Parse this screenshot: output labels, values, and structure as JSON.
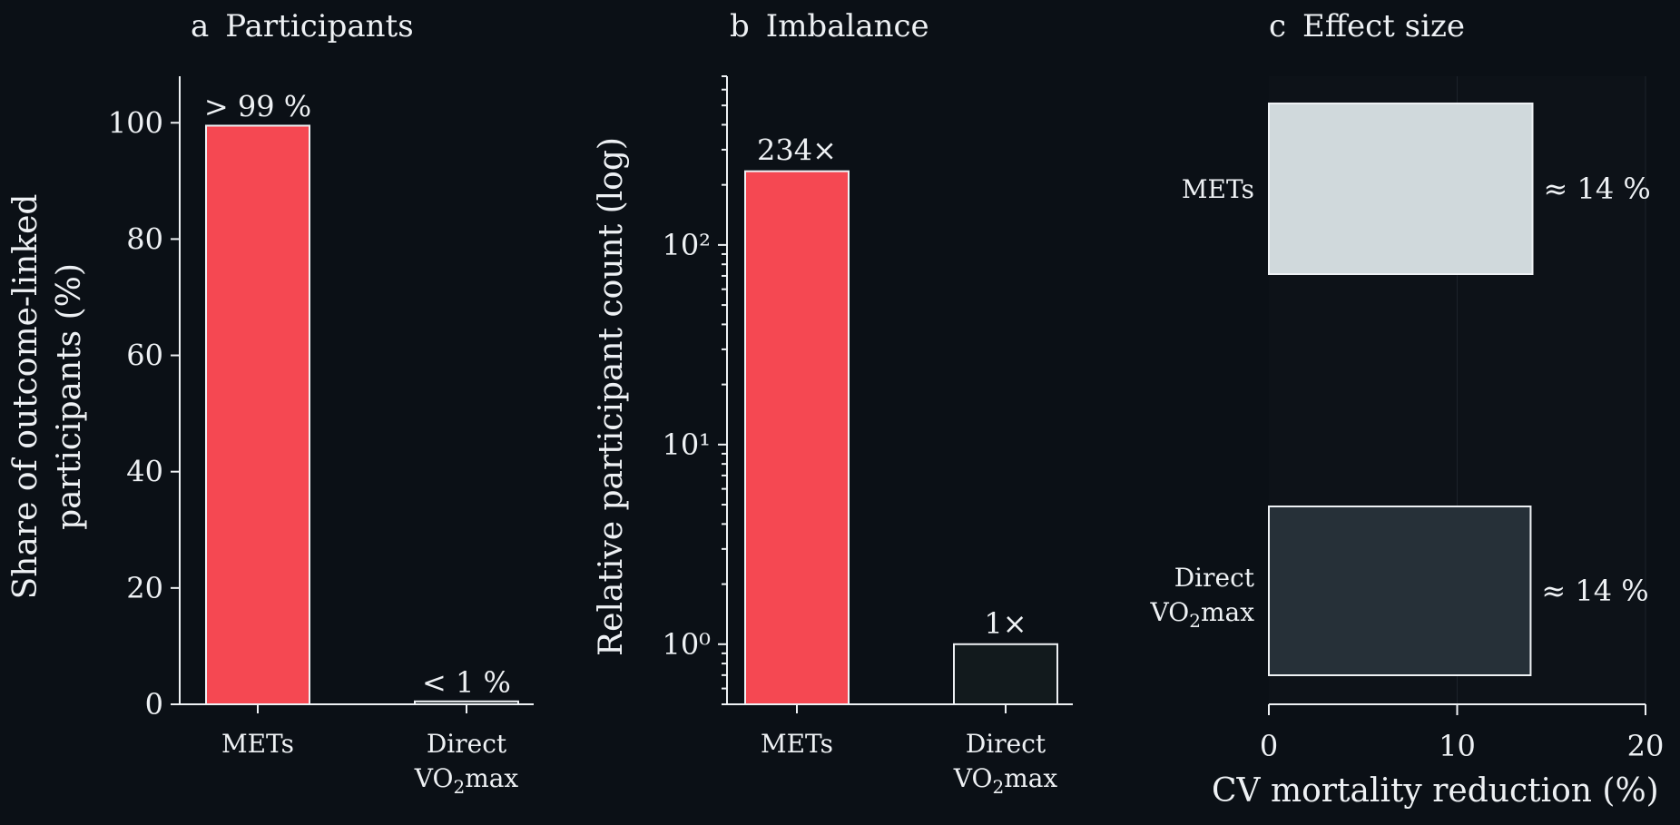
{
  "panels": {
    "a": {
      "letter": "a",
      "title": "Participants",
      "ylabel_line1": "Share of outcome-linked",
      "ylabel_line2": "participants (%)"
    },
    "b": {
      "letter": "b",
      "title": "Imbalance",
      "ylabel": "Relative participant count (log)"
    },
    "c": {
      "letter": "c",
      "title": "Effect size",
      "xlabel": "CV mortality reduction (%)"
    }
  },
  "colors": {
    "background": "#0b1016",
    "mets_red": "#f54852",
    "vo2_dark": "#121a1d",
    "mets_light": "#d0d9dc",
    "vo2_slate": "#263038",
    "text": "#eef1f4"
  },
  "chart_data": [
    {
      "type": "bar",
      "panel": "a",
      "categories": [
        "METs",
        "Direct VO2max"
      ],
      "values": [
        99.5,
        0.5
      ],
      "data_labels": [
        "> 99 %",
        "< 1 %"
      ],
      "title": "a  Participants",
      "ylabel": "Share of outcome-linked participants (%)",
      "xlabel": "",
      "ylim": [
        0,
        108
      ],
      "yticks": [
        0,
        20,
        40,
        60,
        80,
        100
      ],
      "grid": false
    },
    {
      "type": "bar",
      "panel": "b",
      "categories": [
        "METs",
        "Direct VO2max"
      ],
      "values": [
        234,
        1
      ],
      "data_labels": [
        "234×",
        "1×"
      ],
      "title": "b  Imbalance",
      "ylabel": "Relative participant count (log)",
      "xlabel": "",
      "yscale": "log",
      "ylim": [
        0.5,
        700
      ],
      "yticks": [
        1,
        10,
        100
      ],
      "grid": false
    },
    {
      "type": "bar",
      "orientation": "horizontal",
      "panel": "c",
      "categories": [
        "METs",
        "Direct VO2max"
      ],
      "values": [
        14,
        13.9
      ],
      "data_labels": [
        "≈ 14 %",
        "≈ 14 %"
      ],
      "title": "c  Effect size",
      "xlabel": "CV mortality reduction (%)",
      "ylabel": "",
      "xlim": [
        0,
        20
      ],
      "xticks": [
        0,
        10,
        20
      ],
      "grid": true
    }
  ],
  "category_labels": {
    "mets": "METs",
    "direct": "Direct",
    "vo2_main": "VO",
    "vo2_sub": "2",
    "vo2_tail": "max"
  }
}
